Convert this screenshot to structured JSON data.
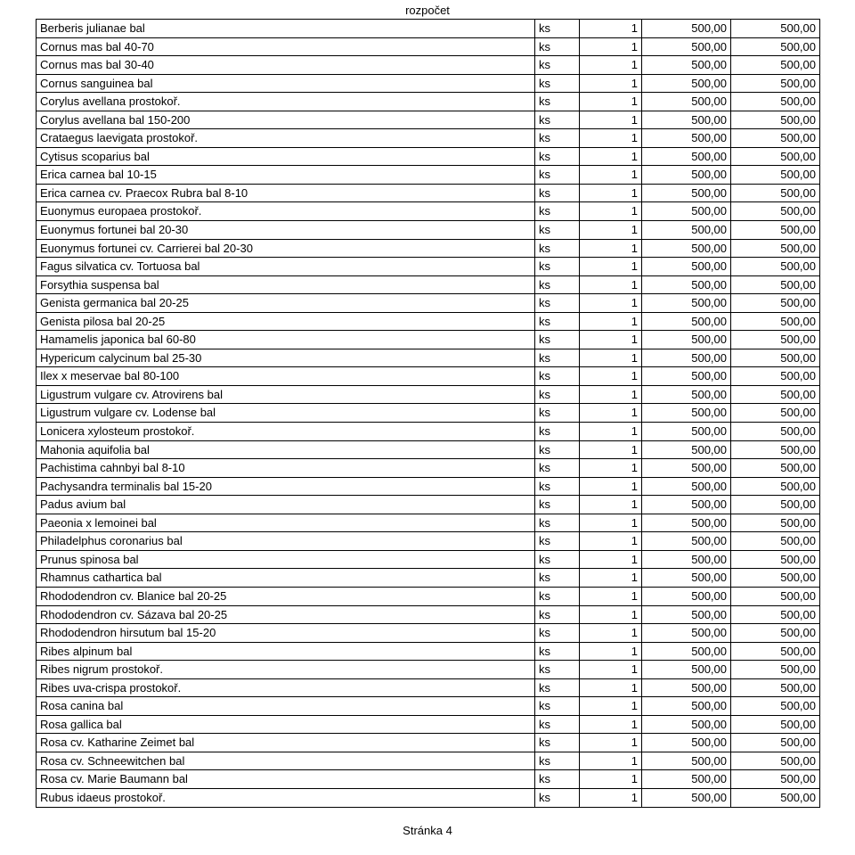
{
  "doc_title": "rozpočet",
  "footer": "Stránka 4",
  "columns": {
    "name_width": 560,
    "unit_width": 50,
    "qty_width": 70,
    "price_width": 100,
    "total_width": 100,
    "border_color": "#000000",
    "text_color": "#000000",
    "background_color": "#ffffff",
    "font_size": 13
  },
  "rows": [
    {
      "name": "Berberis julianae bal",
      "unit": "ks",
      "qty": "1",
      "price": "500,00",
      "total": "500,00"
    },
    {
      "name": "Cornus mas bal 40-70",
      "unit": "ks",
      "qty": "1",
      "price": "500,00",
      "total": "500,00"
    },
    {
      "name": "Cornus mas bal 30-40",
      "unit": "ks",
      "qty": "1",
      "price": "500,00",
      "total": "500,00"
    },
    {
      "name": "Cornus sanguinea bal",
      "unit": "ks",
      "qty": "1",
      "price": "500,00",
      "total": "500,00"
    },
    {
      "name": "Corylus avellana prostokoř.",
      "unit": "ks",
      "qty": "1",
      "price": "500,00",
      "total": "500,00"
    },
    {
      "name": "Corylus avellana bal 150-200",
      "unit": "ks",
      "qty": "1",
      "price": "500,00",
      "total": "500,00"
    },
    {
      "name": "Crataegus laevigata prostokoř.",
      "unit": "ks",
      "qty": "1",
      "price": "500,00",
      "total": "500,00"
    },
    {
      "name": "Cytisus scoparius bal",
      "unit": "ks",
      "qty": "1",
      "price": "500,00",
      "total": "500,00"
    },
    {
      "name": "Erica carnea bal 10-15",
      "unit": "ks",
      "qty": "1",
      "price": "500,00",
      "total": "500,00"
    },
    {
      "name": "Erica carnea cv. Praecox Rubra bal 8-10",
      "unit": "ks",
      "qty": "1",
      "price": "500,00",
      "total": "500,00"
    },
    {
      "name": "Euonymus europaea prostokoř.",
      "unit": "ks",
      "qty": "1",
      "price": "500,00",
      "total": "500,00"
    },
    {
      "name": "Euonymus fortunei bal 20-30",
      "unit": "ks",
      "qty": "1",
      "price": "500,00",
      "total": "500,00"
    },
    {
      "name": "Euonymus fortunei cv. Carrierei bal 20-30",
      "unit": "ks",
      "qty": "1",
      "price": "500,00",
      "total": "500,00"
    },
    {
      "name": "Fagus silvatica cv. Tortuosa bal",
      "unit": "ks",
      "qty": "1",
      "price": "500,00",
      "total": "500,00"
    },
    {
      "name": "Forsythia suspensa bal",
      "unit": "ks",
      "qty": "1",
      "price": "500,00",
      "total": "500,00"
    },
    {
      "name": "Genista germanica bal 20-25",
      "unit": "ks",
      "qty": "1",
      "price": "500,00",
      "total": "500,00"
    },
    {
      "name": "Genista pilosa bal 20-25",
      "unit": "ks",
      "qty": "1",
      "price": "500,00",
      "total": "500,00"
    },
    {
      "name": "Hamamelis japonica bal 60-80",
      "unit": "ks",
      "qty": "1",
      "price": "500,00",
      "total": "500,00"
    },
    {
      "name": "Hypericum calycinum bal 25-30",
      "unit": "ks",
      "qty": "1",
      "price": "500,00",
      "total": "500,00"
    },
    {
      "name": "Ilex x meservae bal 80-100",
      "unit": "ks",
      "qty": "1",
      "price": "500,00",
      "total": "500,00"
    },
    {
      "name": "Ligustrum vulgare cv. Atrovirens bal",
      "unit": "ks",
      "qty": "1",
      "price": "500,00",
      "total": "500,00"
    },
    {
      "name": "Ligustrum vulgare cv. Lodense bal",
      "unit": "ks",
      "qty": "1",
      "price": "500,00",
      "total": "500,00"
    },
    {
      "name": "Lonicera xylosteum prostokoř.",
      "unit": "ks",
      "qty": "1",
      "price": "500,00",
      "total": "500,00"
    },
    {
      "name": "Mahonia aquifolia bal",
      "unit": "ks",
      "qty": "1",
      "price": "500,00",
      "total": "500,00"
    },
    {
      "name": "Pachistima cahnbyi bal 8-10",
      "unit": "ks",
      "qty": "1",
      "price": "500,00",
      "total": "500,00"
    },
    {
      "name": "Pachysandra terminalis bal 15-20",
      "unit": "ks",
      "qty": "1",
      "price": "500,00",
      "total": "500,00"
    },
    {
      "name": "Padus avium bal",
      "unit": "ks",
      "qty": "1",
      "price": "500,00",
      "total": "500,00"
    },
    {
      "name": "Paeonia x lemoinei bal",
      "unit": "ks",
      "qty": "1",
      "price": "500,00",
      "total": "500,00"
    },
    {
      "name": "Philadelphus coronarius bal",
      "unit": "ks",
      "qty": "1",
      "price": "500,00",
      "total": "500,00"
    },
    {
      "name": "Prunus spinosa bal",
      "unit": "ks",
      "qty": "1",
      "price": "500,00",
      "total": "500,00"
    },
    {
      "name": "Rhamnus cathartica bal",
      "unit": "ks",
      "qty": "1",
      "price": "500,00",
      "total": "500,00"
    },
    {
      "name": "Rhododendron cv. Blanice bal 20-25",
      "unit": "ks",
      "qty": "1",
      "price": "500,00",
      "total": "500,00"
    },
    {
      "name": "Rhododendron cv. Sázava bal 20-25",
      "unit": "ks",
      "qty": "1",
      "price": "500,00",
      "total": "500,00"
    },
    {
      "name": "Rhododendron hirsutum bal 15-20",
      "unit": "ks",
      "qty": "1",
      "price": "500,00",
      "total": "500,00"
    },
    {
      "name": "Ribes alpinum bal",
      "unit": "ks",
      "qty": "1",
      "price": "500,00",
      "total": "500,00"
    },
    {
      "name": "Ribes nigrum prostokoř.",
      "unit": "ks",
      "qty": "1",
      "price": "500,00",
      "total": "500,00"
    },
    {
      "name": "Ribes uva-crispa prostokoř.",
      "unit": "ks",
      "qty": "1",
      "price": "500,00",
      "total": "500,00"
    },
    {
      "name": "Rosa canina bal",
      "unit": "ks",
      "qty": "1",
      "price": "500,00",
      "total": "500,00"
    },
    {
      "name": "Rosa gallica bal",
      "unit": "ks",
      "qty": "1",
      "price": "500,00",
      "total": "500,00"
    },
    {
      "name": "Rosa cv. Katharine Zeimet bal",
      "unit": "ks",
      "qty": "1",
      "price": "500,00",
      "total": "500,00"
    },
    {
      "name": "Rosa cv. Schneewitchen bal",
      "unit": "ks",
      "qty": "1",
      "price": "500,00",
      "total": "500,00"
    },
    {
      "name": "Rosa cv. Marie Baumann bal",
      "unit": "ks",
      "qty": "1",
      "price": "500,00",
      "total": "500,00"
    },
    {
      "name": "Rubus idaeus prostokoř.",
      "unit": "ks",
      "qty": "1",
      "price": "500,00",
      "total": "500,00"
    }
  ]
}
